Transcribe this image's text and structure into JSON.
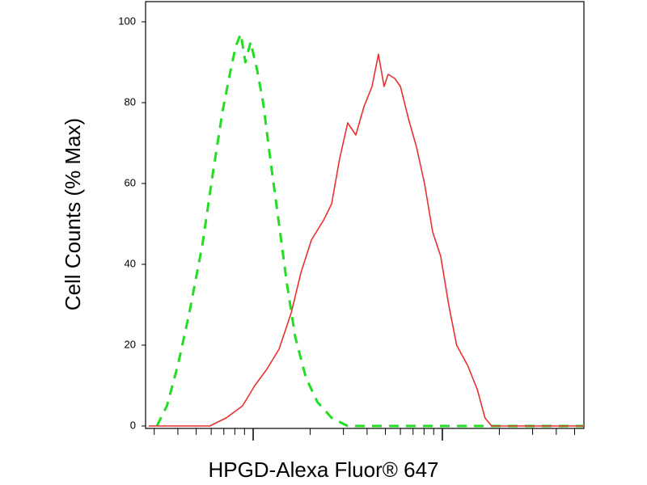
{
  "chart_data": {
    "type": "line",
    "xlabel": "HPGD-Alexa Fluor® 647",
    "ylabel": "Cell Counts (% Max)",
    "xscale": "log",
    "xlim": [
      27,
      5600
    ],
    "xticks": [
      100,
      1000
    ],
    "ylim": [
      0,
      105
    ],
    "yticks": [
      0,
      20,
      40,
      60,
      80,
      100
    ],
    "series": [
      {
        "color": "#22dd22",
        "dashed": true,
        "x": [
          31,
          35,
          40,
          46,
          54,
          61,
          69,
          76,
          81,
          86,
          91,
          97,
          105,
          113,
          124,
          137,
          151,
          167,
          190,
          218,
          260,
          316,
          5600
        ],
        "values": [
          0,
          5,
          15,
          28,
          45,
          62,
          78,
          88,
          94,
          97,
          90,
          95,
          88,
          80,
          65,
          50,
          35,
          22,
          12,
          6,
          2,
          0,
          0
        ]
      },
      {
        "color": "#e83030",
        "dashed": false,
        "x": [
          28,
          59,
          72,
          88,
          102,
          118,
          137,
          159,
          179,
          203,
          236,
          260,
          286,
          316,
          349,
          385,
          425,
          459,
          492,
          517,
          560,
          600,
          662,
          730,
          805,
          889,
          980,
          1080,
          1190,
          1360,
          1530,
          1680,
          1820,
          5600
        ],
        "values": [
          0,
          0,
          2,
          5,
          10,
          14,
          19,
          28,
          38,
          46,
          51,
          55,
          66,
          75,
          72,
          79,
          84,
          92,
          84,
          87,
          86,
          84,
          76,
          69,
          60,
          48,
          42,
          30,
          20,
          15,
          9,
          2,
          0,
          0
        ]
      }
    ]
  }
}
